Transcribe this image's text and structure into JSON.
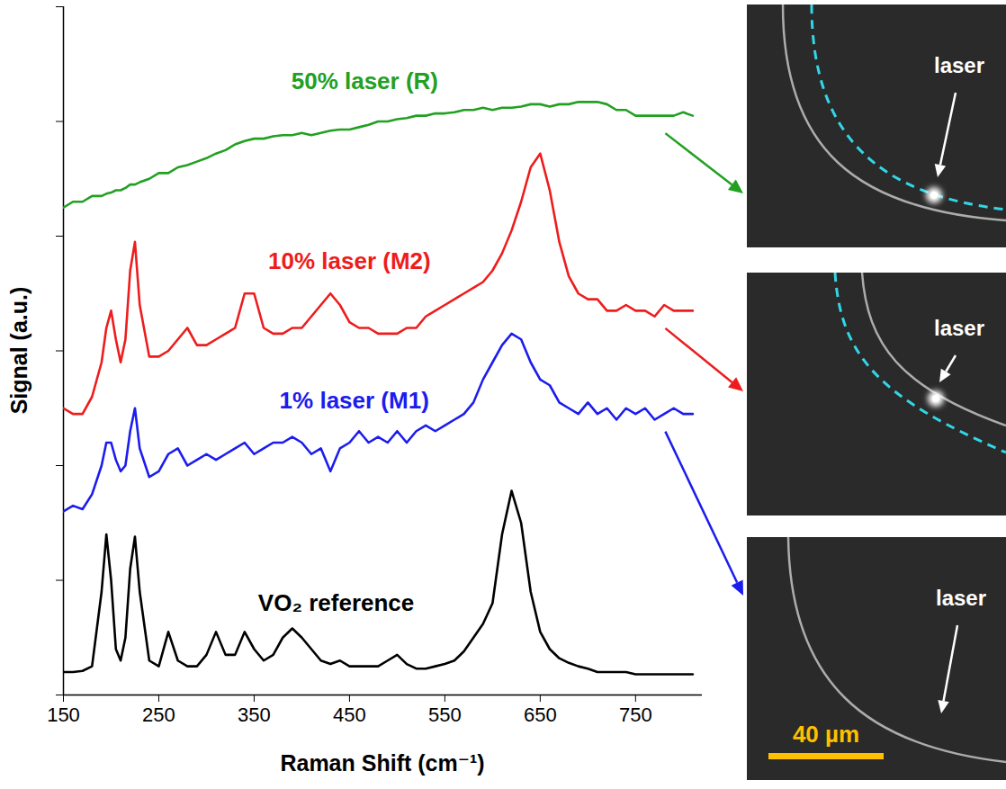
{
  "chart_data": {
    "type": "line",
    "x_label": "Raman Shift (cm⁻¹)",
    "y_label": "Signal (a.u.)",
    "xlim": [
      150,
      820
    ],
    "xticks": [
      150,
      250,
      350,
      450,
      550,
      650,
      750
    ],
    "ylim": [
      0,
      6
    ],
    "yticks": [
      0,
      1,
      2,
      3,
      4,
      5,
      6
    ],
    "tick_labels": "x",
    "grid": false,
    "x": [
      150,
      160,
      170,
      180,
      190,
      195,
      200,
      205,
      210,
      215,
      220,
      225,
      230,
      240,
      250,
      260,
      270,
      280,
      290,
      300,
      310,
      320,
      330,
      340,
      350,
      360,
      370,
      380,
      390,
      400,
      410,
      420,
      430,
      440,
      450,
      460,
      470,
      480,
      490,
      500,
      510,
      520,
      530,
      540,
      550,
      560,
      570,
      580,
      590,
      600,
      610,
      620,
      630,
      640,
      650,
      660,
      670,
      680,
      690,
      700,
      710,
      720,
      730,
      740,
      750,
      760,
      770,
      780,
      790,
      800,
      810
    ],
    "series": [
      {
        "name": "50% laser (R)",
        "color": "#22a022",
        "label_x": 466,
        "label_y": 5.35,
        "values": [
          4.25,
          4.3,
          4.3,
          4.35,
          4.35,
          4.37,
          4.38,
          4.4,
          4.4,
          4.42,
          4.45,
          4.45,
          4.47,
          4.5,
          4.55,
          4.55,
          4.6,
          4.62,
          4.65,
          4.68,
          4.72,
          4.75,
          4.8,
          4.83,
          4.85,
          4.85,
          4.87,
          4.88,
          4.88,
          4.9,
          4.88,
          4.9,
          4.92,
          4.93,
          4.93,
          4.95,
          4.97,
          5.0,
          5.0,
          5.02,
          5.03,
          5.05,
          5.05,
          5.07,
          5.07,
          5.08,
          5.1,
          5.1,
          5.12,
          5.1,
          5.12,
          5.12,
          5.13,
          5.15,
          5.15,
          5.13,
          5.15,
          5.15,
          5.17,
          5.17,
          5.17,
          5.15,
          5.1,
          5.1,
          5.05,
          5.05,
          5.05,
          5.05,
          5.05,
          5.08,
          5.05
        ]
      },
      {
        "name": "10% laser (M2)",
        "color": "#ee1c1c",
        "label_x": 450,
        "label_y": 3.78,
        "values": [
          2.5,
          2.45,
          2.45,
          2.6,
          2.9,
          3.2,
          3.35,
          3.1,
          2.9,
          3.1,
          3.7,
          3.95,
          3.4,
          2.95,
          2.95,
          3.0,
          3.1,
          3.2,
          3.05,
          3.05,
          3.1,
          3.15,
          3.2,
          3.5,
          3.5,
          3.2,
          3.15,
          3.15,
          3.2,
          3.2,
          3.3,
          3.4,
          3.5,
          3.4,
          3.25,
          3.2,
          3.2,
          3.15,
          3.15,
          3.15,
          3.2,
          3.2,
          3.3,
          3.35,
          3.4,
          3.45,
          3.5,
          3.55,
          3.6,
          3.7,
          3.85,
          4.05,
          4.3,
          4.6,
          4.72,
          4.4,
          3.95,
          3.65,
          3.5,
          3.45,
          3.45,
          3.35,
          3.35,
          3.4,
          3.35,
          3.35,
          3.3,
          3.4,
          3.35,
          3.35,
          3.35
        ]
      },
      {
        "name": "1% laser (M1)",
        "color": "#1c1cee",
        "label_x": 455,
        "label_y": 2.56,
        "values": [
          1.6,
          1.65,
          1.62,
          1.75,
          2.0,
          2.2,
          2.2,
          2.05,
          1.95,
          2.0,
          2.3,
          2.5,
          2.15,
          1.9,
          1.95,
          2.1,
          2.15,
          2.0,
          2.05,
          2.1,
          2.05,
          2.1,
          2.15,
          2.2,
          2.1,
          2.15,
          2.2,
          2.2,
          2.25,
          2.2,
          2.1,
          2.15,
          1.95,
          2.15,
          2.2,
          2.3,
          2.2,
          2.25,
          2.2,
          2.3,
          2.2,
          2.3,
          2.35,
          2.3,
          2.35,
          2.4,
          2.45,
          2.55,
          2.75,
          2.9,
          3.05,
          3.15,
          3.1,
          2.9,
          2.75,
          2.7,
          2.55,
          2.5,
          2.45,
          2.55,
          2.45,
          2.5,
          2.4,
          2.5,
          2.45,
          2.5,
          2.4,
          2.45,
          2.5,
          2.45,
          2.45
        ]
      },
      {
        "name": "VO₂ reference",
        "color": "#000000",
        "label_x": 436,
        "label_y": 0.8,
        "values": [
          0.2,
          0.2,
          0.21,
          0.25,
          0.9,
          1.4,
          1.0,
          0.4,
          0.3,
          0.5,
          1.1,
          1.38,
          0.9,
          0.3,
          0.25,
          0.55,
          0.3,
          0.25,
          0.25,
          0.35,
          0.55,
          0.35,
          0.35,
          0.55,
          0.4,
          0.3,
          0.35,
          0.5,
          0.58,
          0.5,
          0.4,
          0.3,
          0.27,
          0.3,
          0.25,
          0.25,
          0.25,
          0.25,
          0.3,
          0.35,
          0.27,
          0.23,
          0.23,
          0.25,
          0.27,
          0.3,
          0.38,
          0.5,
          0.62,
          0.8,
          1.4,
          1.78,
          1.5,
          0.9,
          0.55,
          0.4,
          0.32,
          0.28,
          0.25,
          0.23,
          0.2,
          0.2,
          0.2,
          0.2,
          0.18,
          0.18,
          0.18,
          0.18,
          0.18,
          0.18,
          0.18
        ]
      }
    ]
  },
  "micrographs": {
    "panels": [
      {
        "label": "laser",
        "series": "50% laser (R)"
      },
      {
        "label": "laser",
        "series": "10% laser (M2)"
      },
      {
        "label": "laser",
        "series": "1% laser (M1)"
      }
    ],
    "scale_bar": "40 µm"
  }
}
